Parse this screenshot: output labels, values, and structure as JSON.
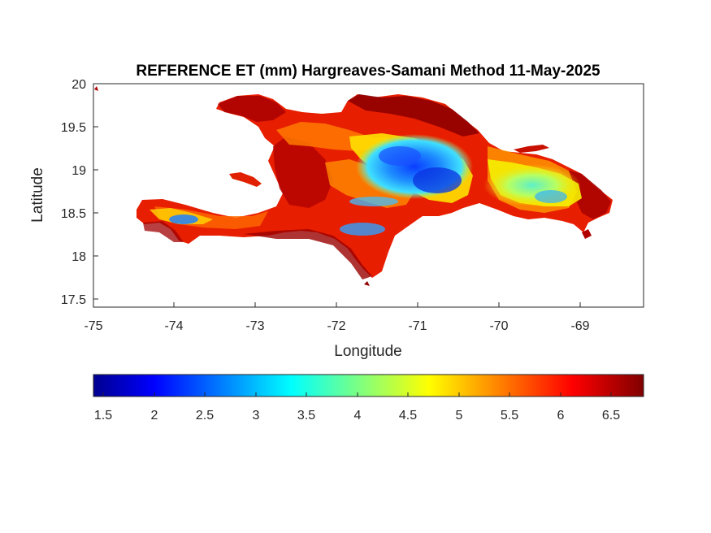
{
  "figure": {
    "title": "REFERENCE ET (mm) Hargreaves-Samani Method  11-May-2025",
    "xlabel": "Longitude",
    "ylabel": "Latitude",
    "xticks": [
      "-75",
      "-74",
      "-73",
      "-72",
      "-71",
      "-70",
      "-69"
    ],
    "yticks": [
      "20",
      "19.5",
      "19",
      "18.5",
      "18",
      "17.5"
    ],
    "xlim": [
      -75,
      -68.22
    ],
    "ylim": [
      17.45,
      20
    ]
  },
  "colorbar": {
    "ticks": [
      "1.5",
      "2",
      "2.5",
      "3",
      "3.5",
      "4",
      "4.5",
      "5",
      "5.5",
      "6",
      "6.5"
    ],
    "range": [
      1.35,
      6.8
    ],
    "colormap": "jet"
  },
  "colors": {
    "dark_red": "#800000",
    "red": "#e60000",
    "orange": "#ff7a00",
    "yellow": "#ffe000",
    "cyan": "#00e0ff",
    "blue": "#1060ff",
    "dark_blue": "#000080"
  }
}
